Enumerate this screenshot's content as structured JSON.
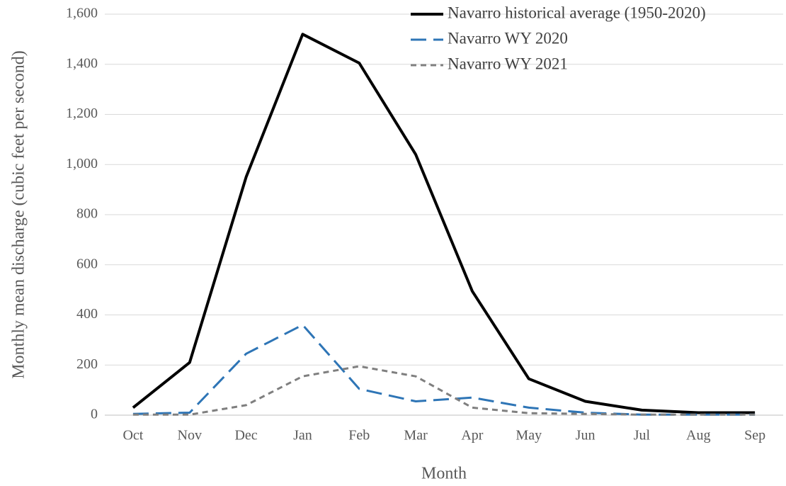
{
  "chart_data": {
    "type": "line",
    "x_label": "Month",
    "y_label": "Monthly mean discharge (cubic feet per second)",
    "categories": [
      "Oct",
      "Nov",
      "Dec",
      "Jan",
      "Feb",
      "Mar",
      "Apr",
      "May",
      "Jun",
      "Jul",
      "Aug",
      "Sep"
    ],
    "series": [
      {
        "name": "Navarro historical average (1950-2020)",
        "color": "#000000",
        "dash": "solid",
        "width": 4,
        "values": [
          30,
          210,
          950,
          1520,
          1405,
          1040,
          495,
          145,
          55,
          20,
          10,
          10
        ]
      },
      {
        "name": "Navarro WY 2020",
        "color": "#2e75b6",
        "dash": "long-dash",
        "width": 3,
        "values": [
          5,
          10,
          245,
          360,
          105,
          55,
          70,
          30,
          10,
          2,
          2,
          2
        ]
      },
      {
        "name": "Navarro WY 2021",
        "color": "#7f7f7f",
        "dash": "short-dash",
        "width": 3,
        "values": [
          2,
          2,
          40,
          155,
          195,
          155,
          30,
          8,
          5,
          2,
          2,
          2
        ]
      }
    ],
    "ylim": [
      0,
      1600
    ],
    "yticks": [
      0,
      200,
      400,
      600,
      800,
      {
        "value": 1000,
        "label": "1,000"
      },
      {
        "value": 1200,
        "label": "1,200"
      },
      {
        "value": 1400,
        "label": "1,400"
      },
      {
        "value": 1600,
        "label": "1,600"
      }
    ],
    "grid": true,
    "legend": "upper-right"
  }
}
